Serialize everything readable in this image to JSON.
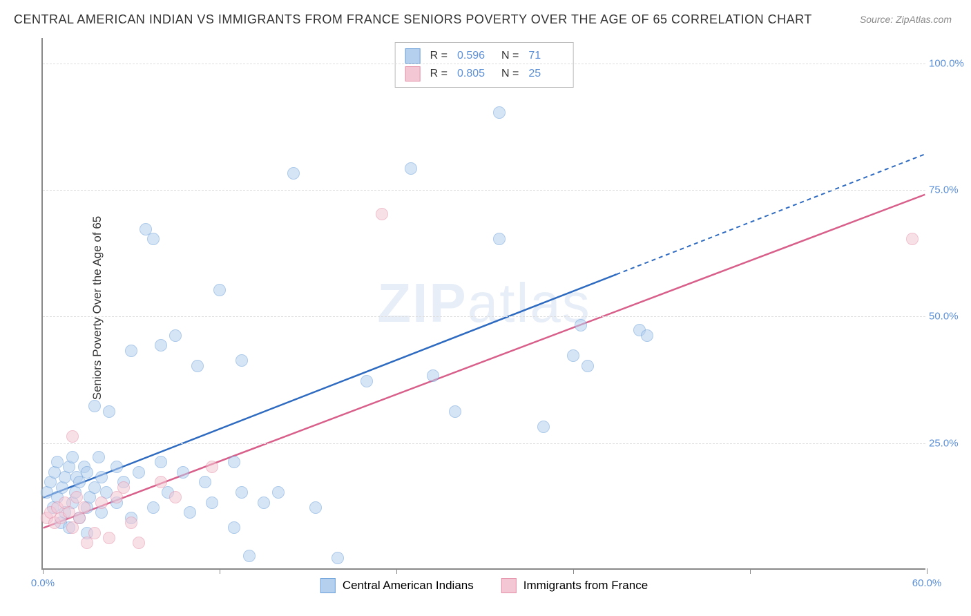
{
  "title": "CENTRAL AMERICAN INDIAN VS IMMIGRANTS FROM FRANCE SENIORS POVERTY OVER THE AGE OF 65 CORRELATION CHART",
  "source": "Source: ZipAtlas.com",
  "y_axis_label": "Seniors Poverty Over the Age of 65",
  "watermark_bold": "ZIP",
  "watermark_light": "atlas",
  "chart": {
    "type": "scatter",
    "xlim": [
      0,
      60
    ],
    "ylim": [
      0,
      105
    ],
    "x_ticks": [
      0,
      12,
      24,
      36,
      48,
      60
    ],
    "x_tick_labels": [
      "0.0%",
      "",
      "",
      "",
      "",
      "60.0%"
    ],
    "y_ticks": [
      25,
      50,
      75,
      100
    ],
    "y_tick_labels": [
      "25.0%",
      "50.0%",
      "75.0%",
      "100.0%"
    ],
    "background_color": "#ffffff",
    "grid_color": "#dddddd",
    "axis_color": "#888888",
    "point_radius": 9,
    "point_opacity": 0.55,
    "series": [
      {
        "name": "Central American Indians",
        "color_fill": "#b5d0ef",
        "color_stroke": "#6a9fd8",
        "r": 0.596,
        "n": 71,
        "trend": {
          "x1": 0,
          "y1": 14,
          "x2": 60,
          "y2": 82,
          "solid_until_x": 39
        },
        "points": [
          [
            0.3,
            15
          ],
          [
            0.5,
            17
          ],
          [
            0.7,
            12
          ],
          [
            0.8,
            19
          ],
          [
            1,
            14
          ],
          [
            1,
            21
          ],
          [
            1.2,
            9
          ],
          [
            1.3,
            16
          ],
          [
            1.5,
            18
          ],
          [
            1.5,
            11
          ],
          [
            1.8,
            20
          ],
          [
            1.8,
            8
          ],
          [
            2,
            22
          ],
          [
            2,
            13
          ],
          [
            2.2,
            15
          ],
          [
            2.3,
            18
          ],
          [
            2.5,
            17
          ],
          [
            2.5,
            10
          ],
          [
            2.8,
            20
          ],
          [
            3,
            19
          ],
          [
            3,
            12
          ],
          [
            3,
            7
          ],
          [
            3.2,
            14
          ],
          [
            3.5,
            32
          ],
          [
            3.5,
            16
          ],
          [
            3.8,
            22
          ],
          [
            4,
            18
          ],
          [
            4,
            11
          ],
          [
            4.3,
            15
          ],
          [
            4.5,
            31
          ],
          [
            5,
            20
          ],
          [
            5,
            13
          ],
          [
            5.5,
            17
          ],
          [
            6,
            10
          ],
          [
            6,
            43
          ],
          [
            6.5,
            19
          ],
          [
            7,
            67
          ],
          [
            7.5,
            65
          ],
          [
            7.5,
            12
          ],
          [
            8,
            44
          ],
          [
            8,
            21
          ],
          [
            8.5,
            15
          ],
          [
            9,
            46
          ],
          [
            9.5,
            19
          ],
          [
            10,
            11
          ],
          [
            10.5,
            40
          ],
          [
            11,
            17
          ],
          [
            11.5,
            13
          ],
          [
            12,
            55
          ],
          [
            13,
            8
          ],
          [
            13,
            21
          ],
          [
            13.5,
            41
          ],
          [
            13.5,
            15
          ],
          [
            14,
            2.5
          ],
          [
            15,
            13
          ],
          [
            16,
            15
          ],
          [
            17,
            78
          ],
          [
            18.5,
            12
          ],
          [
            20,
            2
          ],
          [
            22,
            37
          ],
          [
            25,
            79
          ],
          [
            26.5,
            38
          ],
          [
            28,
            31
          ],
          [
            31,
            65
          ],
          [
            31,
            90
          ],
          [
            34,
            28
          ],
          [
            36,
            42
          ],
          [
            36.5,
            48
          ],
          [
            37,
            40
          ],
          [
            40.5,
            47
          ],
          [
            41,
            46
          ]
        ]
      },
      {
        "name": "Immigrants from France",
        "color_fill": "#f4c7d5",
        "color_stroke": "#e38fa8",
        "r": 0.805,
        "n": 25,
        "trend": {
          "x1": 0,
          "y1": 8,
          "x2": 60,
          "y2": 74,
          "solid_until_x": 60
        },
        "points": [
          [
            0.3,
            10
          ],
          [
            0.5,
            11
          ],
          [
            0.8,
            9
          ],
          [
            1,
            12
          ],
          [
            1.2,
            10
          ],
          [
            1.5,
            13
          ],
          [
            1.8,
            11
          ],
          [
            2,
            26
          ],
          [
            2,
            8
          ],
          [
            2.3,
            14
          ],
          [
            2.5,
            10
          ],
          [
            2.8,
            12
          ],
          [
            3,
            5
          ],
          [
            3.5,
            7
          ],
          [
            4,
            13
          ],
          [
            4.5,
            6
          ],
          [
            5,
            14
          ],
          [
            5.5,
            16
          ],
          [
            6,
            9
          ],
          [
            6.5,
            5
          ],
          [
            8,
            17
          ],
          [
            9,
            14
          ],
          [
            11.5,
            20
          ],
          [
            23,
            70
          ],
          [
            59,
            65
          ]
        ]
      }
    ]
  },
  "legend_top": {
    "r_label": "R =",
    "n_label": "N ="
  },
  "legend_bottom": {
    "items": [
      "Central American Indians",
      "Immigrants from France"
    ]
  }
}
